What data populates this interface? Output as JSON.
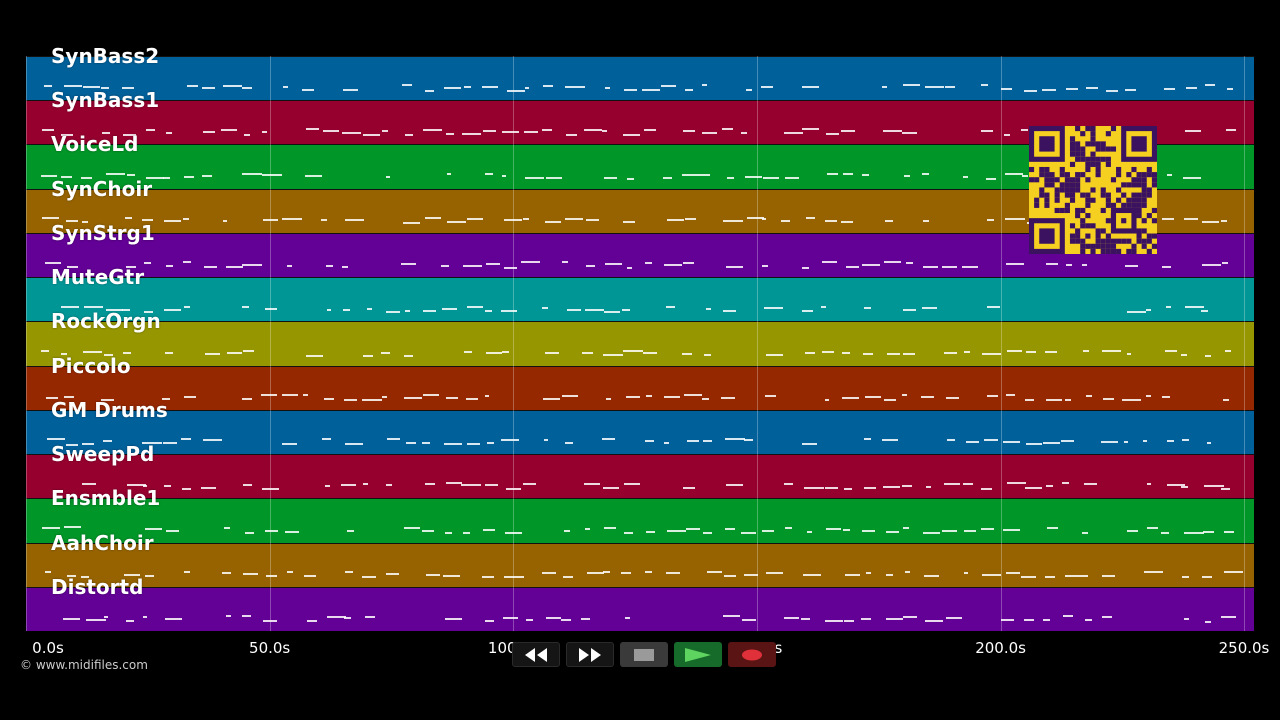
{
  "tracks": [
    {
      "name": "SynBass2",
      "color": "#00609a"
    },
    {
      "name": "SynBass1",
      "color": "#96002f"
    },
    {
      "name": "VoiceLd",
      "color": "#009628"
    },
    {
      "name": "SynChoir",
      "color": "#966300"
    },
    {
      "name": "SynStrg1",
      "color": "#630096"
    },
    {
      "name": "MuteGtr",
      "color": "#009696"
    },
    {
      "name": "RockOrgn",
      "color": "#969600"
    },
    {
      "name": "Piccolo",
      "color": "#962800"
    },
    {
      "name": "GM Drums",
      "color": "#00609a"
    },
    {
      "name": "SweepPd",
      "color": "#96002f"
    },
    {
      "name": "Ensmble1",
      "color": "#009628"
    },
    {
      "name": "AahChoir",
      "color": "#966300"
    },
    {
      "name": "Distortd",
      "color": "#630096"
    }
  ],
  "timeline": {
    "max_seconds": 252,
    "ticks": [
      {
        "value": 0,
        "label": "0.0s"
      },
      {
        "value": 50,
        "label": "50.0s"
      },
      {
        "value": 100,
        "label": "100.0s"
      },
      {
        "value": 150,
        "label": "150.0s"
      },
      {
        "value": 200,
        "label": "200.0s"
      },
      {
        "value": 250,
        "label": "250.0s"
      }
    ]
  },
  "copyright": "© www.midifiles.com",
  "transport": {
    "rewind": "rewind-icon",
    "fast_forward": "fast-forward-icon",
    "stop": "stop-icon",
    "play": "play-icon",
    "record": "record-icon"
  },
  "qr_code": "qr-code-icon"
}
